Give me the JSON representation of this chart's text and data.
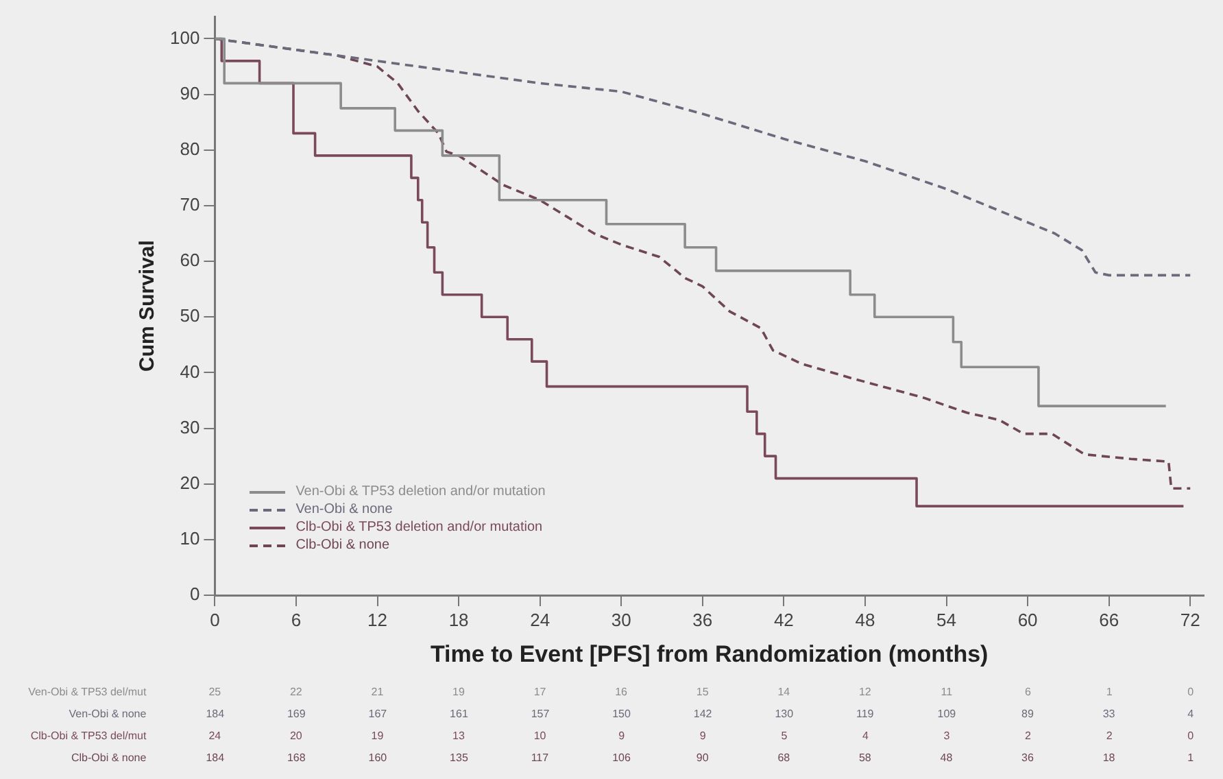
{
  "chart_data": {
    "type": "step",
    "xlabel": "Time to Event [PFS] from Randomization (months)",
    "ylabel": "Cum Survival",
    "xlim": [
      0,
      73
    ],
    "ylim": [
      0,
      104
    ],
    "xticks": [
      0,
      6,
      12,
      18,
      24,
      30,
      36,
      42,
      48,
      54,
      60,
      66,
      72
    ],
    "yticks": [
      0,
      10,
      20,
      30,
      40,
      50,
      60,
      70,
      80,
      90,
      100
    ],
    "grid": false,
    "legend": "bottom left",
    "marker": "none",
    "series": [
      {
        "name": "Ven-Obi & TP53 deletion and/or mutation",
        "color": "#8c8c8c",
        "line_style": "solid",
        "x": [
          0,
          0.7,
          9.3,
          13.3,
          16.8,
          21,
          28.9,
          34.7,
          37,
          46.9,
          48.7,
          54.5,
          55.1,
          60.8,
          70.2
        ],
        "values": [
          100,
          92,
          87.5,
          83.5,
          79,
          71,
          66.7,
          62.5,
          58.3,
          54,
          50,
          45.5,
          41,
          34,
          34
        ]
      },
      {
        "name": "Ven-Obi & none",
        "type": "line",
        "color": "#6a6a7a",
        "line_style": "dashed",
        "x": [
          0,
          3,
          6,
          9,
          12,
          18,
          24,
          30,
          36,
          42,
          48,
          54,
          58,
          60,
          62,
          64,
          65,
          66,
          72
        ],
        "values": [
          100,
          99,
          98,
          97,
          96,
          94,
          92,
          90.5,
          86.5,
          82,
          78,
          73,
          69,
          67,
          65,
          62,
          58,
          57.5,
          57.5
        ]
      },
      {
        "name": "Clb-Obi & TP53 deletion and/or mutation",
        "color": "#7a4a5c",
        "line_style": "solid",
        "x": [
          0,
          0.5,
          3.3,
          5.8,
          7.4,
          14.5,
          15,
          15.3,
          15.7,
          16.2,
          16.8,
          19.7,
          21.6,
          23.4,
          24.5,
          39.3,
          40,
          40.6,
          41.4,
          51.8,
          71.5
        ],
        "values": [
          100,
          96,
          92,
          83,
          79,
          75,
          71,
          67,
          62.5,
          58,
          54,
          50,
          46,
          42,
          37.5,
          33,
          29,
          25,
          21,
          16,
          16
        ]
      },
      {
        "name": "Clb-Obi & none",
        "type": "line",
        "color": "#6e4656",
        "line_style": "dashed",
        "x": [
          0,
          3,
          6,
          9,
          12,
          13.5,
          15,
          16.5,
          17.1,
          18,
          21.3,
          24,
          26,
          28,
          30,
          32.8,
          34.7,
          36,
          38,
          40.3,
          41.2,
          43.3,
          47,
          52.3,
          55.5,
          57.9,
          59.7,
          61.8,
          64.2,
          67.6,
          70.4,
          70.6,
          72
        ],
        "values": [
          100,
          99,
          98,
          97,
          95,
          92,
          87,
          83,
          79.7,
          79,
          73.7,
          71,
          68,
          65,
          63,
          60.8,
          57,
          55.5,
          51,
          48,
          44,
          41.6,
          39,
          35.5,
          32.8,
          31.5,
          29,
          29,
          25.3,
          24.5,
          24,
          19.2,
          19.2
        ]
      }
    ],
    "annotations": [
      "Ven-Obi & TP53 del/mut",
      "25",
      "22",
      "21",
      "19",
      "17",
      "16",
      "15",
      "14",
      "12",
      "11",
      "6",
      "1",
      "0",
      "Ven-Obi & none",
      "184",
      "169",
      "167",
      "161",
      "157",
      "150",
      "142",
      "130",
      "119",
      "109",
      "89",
      "33",
      "4",
      "Clb-Obi & TP53 del/mut",
      "24",
      "20",
      "19",
      "13",
      "10",
      "9",
      "9",
      "5",
      "4",
      "3",
      "2",
      "2",
      "0",
      "Clb-Obi & none",
      "184",
      "168",
      "160",
      "135",
      "117",
      "106",
      "90",
      "68",
      "58",
      "48",
      "36",
      "18",
      "1"
    ]
  }
}
